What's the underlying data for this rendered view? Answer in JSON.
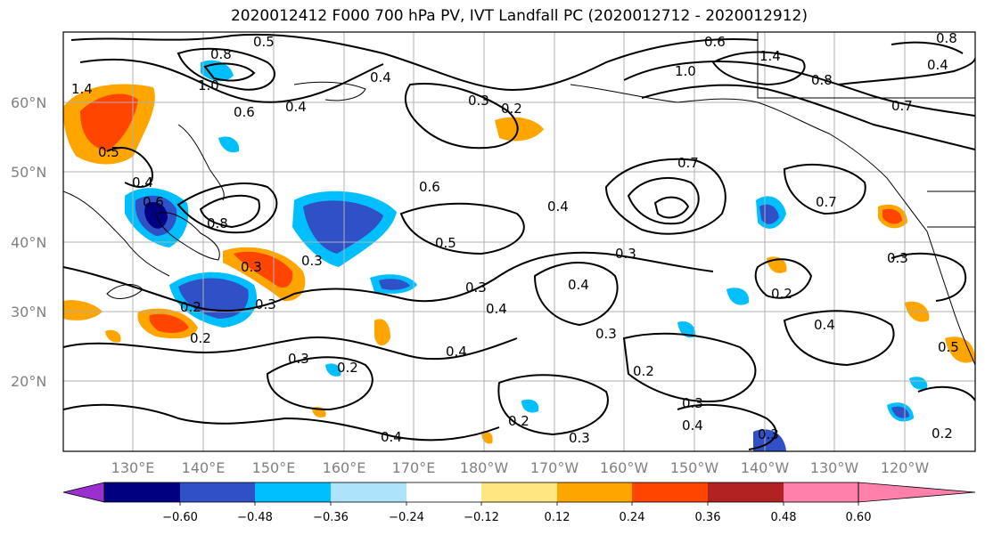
{
  "title": "2020012412 F000 700 hPa PV, IVT Landfall PC (2020012712 - 2020012912)",
  "lat_labels": [
    "60°N",
    "50°N",
    "40°N",
    "30°N",
    "20°N"
  ],
  "lon_labels": [
    "130°E",
    "140°E",
    "150°E",
    "160°E",
    "170°E",
    "180°W",
    "170°W",
    "160°W",
    "150°W",
    "140°W",
    "130°W",
    "120°W"
  ],
  "colorbar": {
    "colors": [
      "#9b30d0",
      "#000080",
      "#3050c8",
      "#00bfff",
      "#aee4fb",
      "#ffffff",
      "#ffe680",
      "#ffa500",
      "#ff4500",
      "#b22222",
      "#ff80aa"
    ],
    "tick_labels": [
      "−0.60",
      "−0.48",
      "−0.36",
      "−0.24",
      "−0.12",
      "0.12",
      "0.24",
      "0.36",
      "0.48",
      "0.60"
    ]
  },
  "contour_labels": [
    "0.5",
    "0.8",
    "1.0",
    "0.4",
    "0.6",
    "0.4",
    "0.3",
    "0.2",
    "0.6",
    "1.0",
    "1.4",
    "0.8",
    "0.7",
    "0.8",
    "0.4",
    "1.4",
    "0.5",
    "0.4",
    "0.6",
    "0.8",
    "0.6",
    "0.4",
    "0.5",
    "0.3",
    "0.7",
    "0.3",
    "0.3",
    "0.3",
    "0.4",
    "0.2",
    "0.3",
    "0.2",
    "0.3",
    "0.2",
    "0.4",
    "0.3",
    "0.4",
    "0.2",
    "0.2",
    "0.4",
    "0.5",
    "0.4",
    "0.3",
    "0.2",
    "0.3",
    "0.3",
    "0.4",
    "0.2",
    "0.7",
    "0.3"
  ],
  "colors": {
    "neg_deep": "#000080",
    "neg_med": "#3050c8",
    "neg_light": "#00bfff",
    "pos_light": "#ffa500",
    "pos_med": "#ff4500",
    "pos_light2": "#ffe680"
  }
}
